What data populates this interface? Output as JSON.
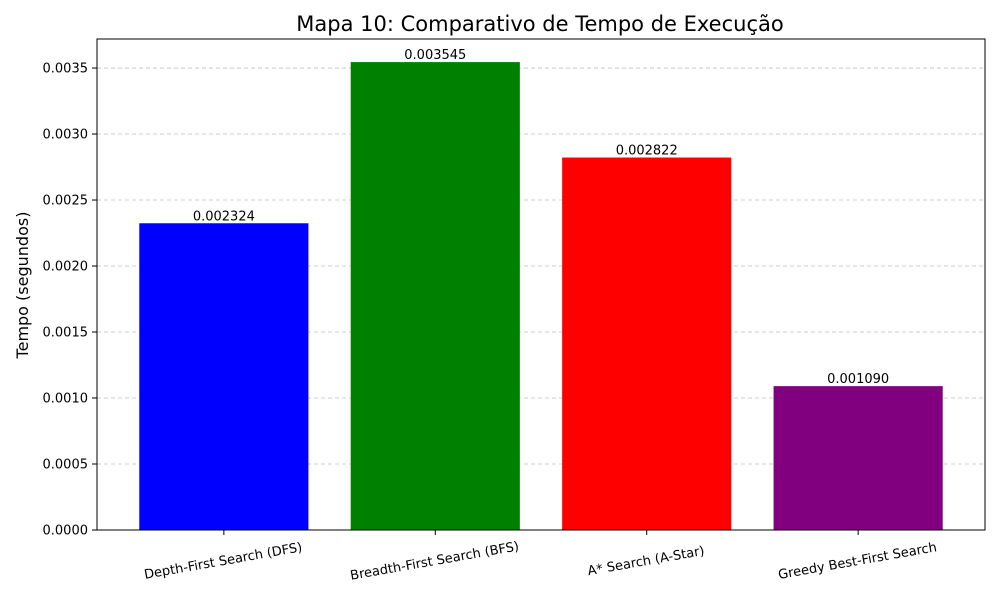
{
  "chart_data": {
    "type": "bar",
    "title": "Mapa 10: Comparativo de Tempo de Execução",
    "xlabel": "",
    "ylabel": "Tempo (segundos)",
    "categories": [
      "Depth-First Search (DFS)",
      "Breadth-First Search (BFS)",
      "A* Search (A-Star)",
      "Greedy Best-First Search"
    ],
    "values": [
      0.002324,
      0.003545,
      0.002822,
      0.00109
    ],
    "value_labels": [
      "0.002324",
      "0.003545",
      "0.002822",
      "0.001090"
    ],
    "colors": [
      "#0000ff",
      "#008000",
      "#ff0000",
      "#800080"
    ],
    "ylim": [
      0,
      0.00372
    ],
    "yticks": [
      0,
      0.0005,
      0.001,
      0.0015,
      0.002,
      0.0025,
      0.003,
      0.0035
    ],
    "ytick_labels": [
      "0.0000",
      "0.0005",
      "0.0010",
      "0.0015",
      "0.0020",
      "0.0025",
      "0.0030",
      "0.0035"
    ],
    "grid": "y-dashed",
    "xtick_rotation": "slanted"
  }
}
